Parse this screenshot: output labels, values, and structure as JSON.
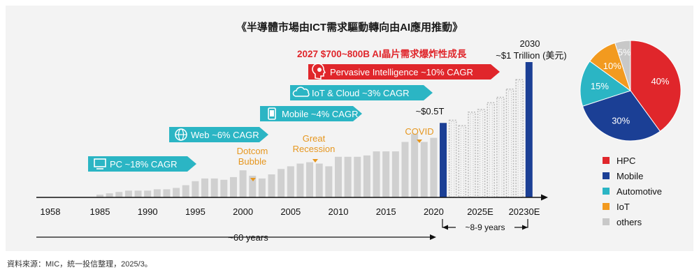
{
  "title": "《半導體市場由ICT需求驅動轉向由AI應用推動》",
  "source": "資料來源：MIC，統一投信整理，2025/3。",
  "colors": {
    "hist_bar": "#d0d0d0",
    "highlight_bar": "#1b3f95",
    "forecast_bar": "#b8b8b8",
    "arrow_teal": "#2bb5c4",
    "arrow_red": "#e0262b",
    "annotation_orange": "#e6961e",
    "headline_red": "#e0262b"
  },
  "chart_data": [
    {
      "type": "bar",
      "x_tick_labels": [
        "1958",
        "1985",
        "1990",
        "1995",
        "2000",
        "2005",
        "2010",
        "2015",
        "2020",
        "2025E",
        "20230E"
      ],
      "headline": "2027 $700~800B AI晶片需求爆炸性成長",
      "value_labels": {
        "2021": "~$0.5T",
        "2030_year": "2030",
        "2030_value": "~$1 Trillion (美元)"
      },
      "eras": [
        {
          "label": "PC ~18% CAGR",
          "icon": "monitor-icon",
          "color": "teal"
        },
        {
          "label": "Web ~6% CAGR",
          "icon": "globe-icon",
          "color": "teal"
        },
        {
          "label": "Mobile ~4% CAGR",
          "icon": "phone-icon",
          "color": "teal"
        },
        {
          "label": "IoT & Cloud ~3% CAGR",
          "icon": "cloud-icon",
          "color": "teal"
        },
        {
          "label": "Pervasive Intelligence ~10% CAGR",
          "icon": "brain-head-icon",
          "color": "red"
        }
      ],
      "events": [
        {
          "label": "Dotcom\nBubble",
          "year": 2001
        },
        {
          "label": "Great\nRecession",
          "year": 2009
        },
        {
          "label": "COVID",
          "year": 2020
        }
      ],
      "spans": [
        {
          "label": "~60 years"
        },
        {
          "label": "~8-9 years"
        }
      ],
      "unit": "USD trillion (approx.)",
      "series": [
        {
          "values": [
            [
              1985,
              0.02
            ],
            [
              1986,
              0.03
            ],
            [
              1987,
              0.04
            ],
            [
              1988,
              0.05
            ],
            [
              1989,
              0.05
            ],
            [
              1990,
              0.05
            ],
            [
              1991,
              0.06
            ],
            [
              1992,
              0.06
            ],
            [
              1993,
              0.07
            ],
            [
              1994,
              0.09
            ],
            [
              1995,
              0.12
            ],
            [
              1996,
              0.14
            ],
            [
              1997,
              0.14
            ],
            [
              1998,
              0.13
            ],
            [
              1999,
              0.15
            ],
            [
              2000,
              0.2
            ],
            [
              2001,
              0.16
            ],
            [
              2002,
              0.14
            ],
            [
              2003,
              0.17
            ],
            [
              2004,
              0.21
            ],
            [
              2005,
              0.23
            ],
            [
              2006,
              0.25
            ],
            [
              2007,
              0.26
            ],
            [
              2008,
              0.25
            ],
            [
              2009,
              0.23
            ],
            [
              2010,
              0.3
            ],
            [
              2011,
              0.3
            ],
            [
              2012,
              0.3
            ],
            [
              2013,
              0.31
            ],
            [
              2014,
              0.34
            ],
            [
              2015,
              0.34
            ],
            [
              2016,
              0.34
            ],
            [
              2017,
              0.41
            ],
            [
              2018,
              0.47
            ],
            [
              2019,
              0.41
            ],
            [
              2020,
              0.44
            ],
            [
              2021,
              0.55
            ]
          ]
        },
        {
          "highlight": true,
          "values": [
            [
              2021,
              0.55
            ],
            [
              2030,
              1.0
            ]
          ]
        },
        {
          "forecast": true,
          "values": [
            [
              2022,
              0.57
            ],
            [
              2023,
              0.53
            ],
            [
              2024,
              0.63
            ],
            [
              2025,
              0.65
            ],
            [
              2026,
              0.7
            ],
            [
              2027,
              0.74
            ],
            [
              2028,
              0.8
            ],
            [
              2029,
              0.87
            ]
          ]
        }
      ]
    },
    {
      "type": "pie",
      "slices": [
        {
          "label": "HPC",
          "value": 40,
          "text": "40%",
          "color": "#e0262b"
        },
        {
          "label": "Mobile",
          "value": 30,
          "text": "30%",
          "color": "#1b3f95"
        },
        {
          "label": "Automotive",
          "value": 15,
          "text": "15%",
          "color": "#2bb5c4"
        },
        {
          "label": "IoT",
          "value": 10,
          "text": "10%",
          "color": "#f29a1f"
        },
        {
          "label": "others",
          "value": 5,
          "text": "5%",
          "color": "#c8c8c8"
        }
      ]
    }
  ]
}
